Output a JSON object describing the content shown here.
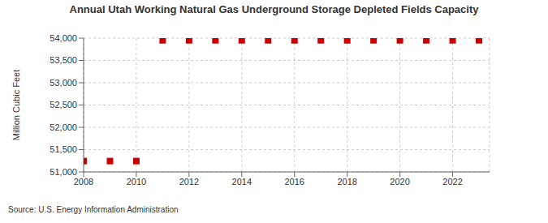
{
  "chart_data": {
    "type": "scatter",
    "title": "Annual Utah Working Natural Gas Underground Storage Depleted Fields Capacity",
    "y_label": "Million Cubic Feet",
    "source": "Source: U.S. Energy Information Administration",
    "x": [
      2008,
      2009,
      2010,
      2011,
      2012,
      2013,
      2014,
      2015,
      2016,
      2017,
      2018,
      2019,
      2020,
      2021,
      2022,
      2023
    ],
    "values": [
      51243,
      51243,
      51243,
      53950,
      53950,
      53950,
      53950,
      53950,
      53950,
      53950,
      53950,
      53950,
      53950,
      53950,
      53950,
      53950
    ],
    "color": "#cc0000",
    "marker": "square",
    "xlim": [
      2008,
      2023.4
    ],
    "xticks": [
      2008,
      2010,
      2012,
      2014,
      2016,
      2018,
      2020,
      2022
    ],
    "ylim": [
      51000,
      54000
    ],
    "yticks": [
      {
        "value": 51000,
        "label": "51,000"
      },
      {
        "value": 51500,
        "label": "51,500"
      },
      {
        "value": 52000,
        "label": "52,000"
      },
      {
        "value": 52500,
        "label": "52,500"
      },
      {
        "value": 53000,
        "label": "53,000"
      },
      {
        "value": 53500,
        "label": "53,500"
      },
      {
        "value": 54000,
        "label": "54,000"
      }
    ],
    "grid": true
  }
}
